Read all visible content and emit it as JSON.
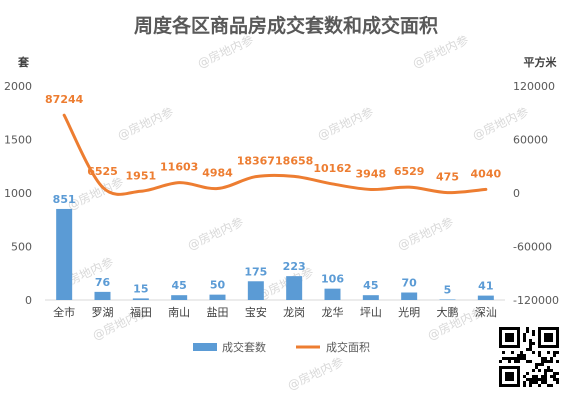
{
  "chart_data": {
    "type": "bar",
    "title": "周度各区商品房成交套数和成交面积",
    "y_left_unit": "套",
    "y_right_unit": "平方米",
    "y_left_range": [
      0,
      2000
    ],
    "y_left_ticks": [
      "0",
      "500",
      "1000",
      "1500",
      "2000"
    ],
    "y_right_range": [
      -120000,
      120000
    ],
    "y_right_ticks": [
      "-120000",
      "-60000",
      "0",
      "60000",
      "120000"
    ],
    "categories": [
      "全市",
      "罗湖",
      "福田",
      "南山",
      "盐田",
      "宝安",
      "龙岗",
      "龙华",
      "坪山",
      "光明",
      "大鹏",
      "深汕"
    ],
    "series": [
      {
        "name": "成交套数",
        "type": "bar",
        "axis": "left",
        "color": "#5b9bd5",
        "values": [
          851,
          76,
          15,
          45,
          50,
          175,
          223,
          106,
          45,
          70,
          5,
          41
        ]
      },
      {
        "name": "成交面积",
        "type": "line",
        "axis": "right",
        "color": "#ed7d31",
        "values": [
          87244,
          6525,
          1951,
          11603,
          4984,
          18367,
          18658,
          10162,
          3948,
          6529,
          475,
          4040
        ]
      }
    ],
    "grid": false,
    "legend_position": "bottom"
  },
  "watermark": "@房地内参"
}
